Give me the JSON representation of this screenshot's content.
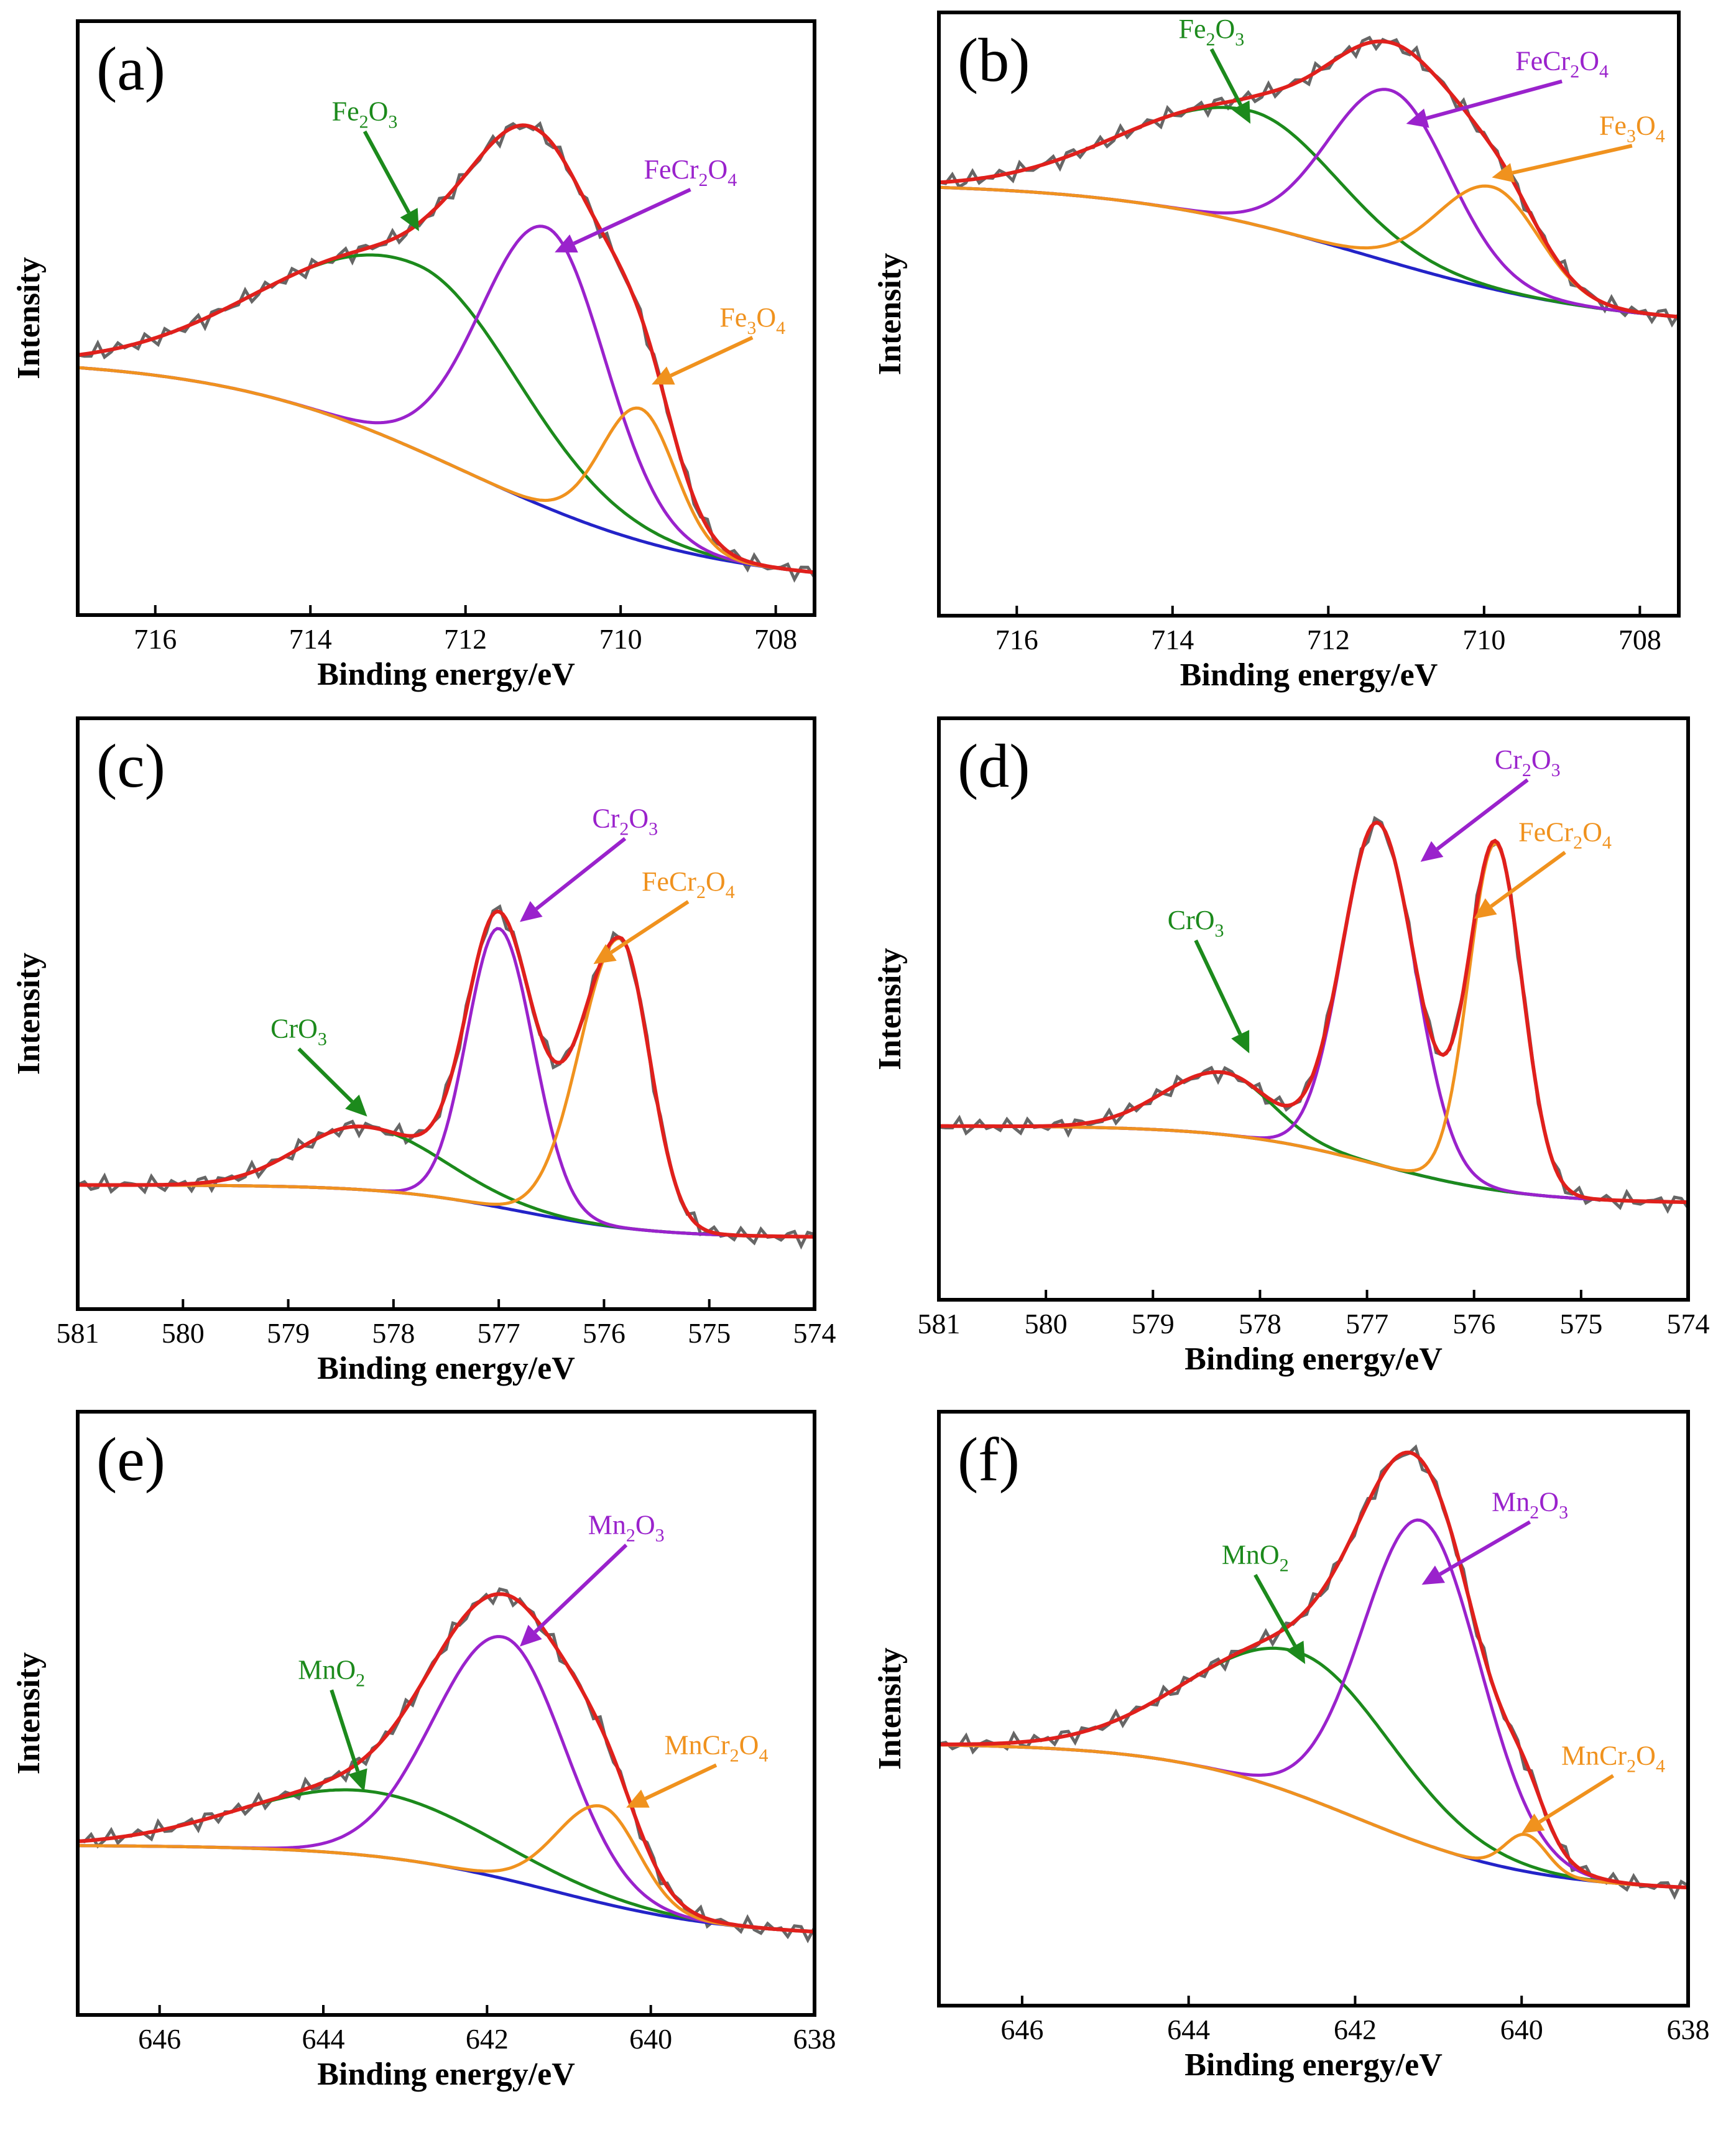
{
  "figure_type": "XPS high-resolution spectra",
  "colors": {
    "raw": "#666666",
    "envelope": "#e0201c",
    "background": "#2323c8",
    "green": "#1c8a1c",
    "purple": "#9a22cc",
    "orange": "#f0921e"
  },
  "chart_data": [
    {
      "type": "line",
      "panel": "(a)",
      "xlabel": "Binding energy/eV",
      "ylabel": "Intensity",
      "xlim": [
        717.0,
        707.5
      ],
      "ylim": [
        0,
        1
      ],
      "xticks": [
        "716",
        "714",
        "712",
        "710",
        "708"
      ],
      "background": {
        "high": 0.43,
        "low": 0.0,
        "center": 712.0,
        "width": 1.6
      },
      "components": [
        {
          "name": "Fe2O3",
          "label_main": "Fe",
          "label_parts": [
            "2",
            "O",
            "3"
          ],
          "color": "green",
          "center": 712.6,
          "height": 0.35,
          "sigma_left": 1.9,
          "sigma_right": 1.3,
          "label_anchor": [
            713.3,
            0.88
          ],
          "arrow_tip": [
            712.6,
            0.67
          ]
        },
        {
          "name": "FeCr2O4",
          "label_main": "FeCr",
          "label_parts": [
            "2",
            "O",
            "4"
          ],
          "color": "purple",
          "center": 710.95,
          "height": 0.53,
          "sigma_left": 0.85,
          "sigma_right": 0.75,
          "label_anchor": [
            709.1,
            0.77
          ],
          "arrow_tip": [
            710.85,
            0.63
          ]
        },
        {
          "name": "Fe3O4",
          "label_main": "Fe",
          "label_parts": [
            "3",
            "O",
            "4"
          ],
          "color": "orange",
          "center": 709.75,
          "height": 0.25,
          "sigma_left": 0.5,
          "sigma_right": 0.45,
          "label_anchor": [
            708.3,
            0.49
          ],
          "arrow_tip": [
            709.6,
            0.38
          ]
        }
      ]
    },
    {
      "type": "line",
      "panel": "(b)",
      "xlabel": "Binding energy/eV",
      "ylabel": "Intensity",
      "xlim": [
        717.0,
        707.5
      ],
      "ylim": [
        0,
        1
      ],
      "xticks": [
        "716",
        "714",
        "712",
        "710",
        "708"
      ],
      "background": {
        "high": 0.75,
        "low": 0.48,
        "center": 711.5,
        "width": 1.6
      },
      "components": [
        {
          "name": "Fe2O3",
          "label_main": "Fe",
          "label_parts": [
            "2",
            "O",
            "3"
          ],
          "color": "green",
          "center": 713.0,
          "height": 0.21,
          "sigma_left": 1.6,
          "sigma_right": 1.1,
          "label_anchor": [
            713.5,
            1.02
          ],
          "arrow_tip": [
            713.0,
            0.86
          ]
        },
        {
          "name": "FeCr2O4",
          "label_main": "FeCr",
          "label_parts": [
            "2",
            "O",
            "4"
          ],
          "color": "purple",
          "center": 711.2,
          "height": 0.32,
          "sigma_left": 0.8,
          "sigma_right": 0.75,
          "label_anchor": [
            709.0,
            0.96
          ],
          "arrow_tip": [
            711.0,
            0.86
          ]
        },
        {
          "name": "Fe3O4",
          "label_main": "Fe",
          "label_parts": [
            "3",
            "O",
            "4"
          ],
          "color": "orange",
          "center": 709.9,
          "height": 0.19,
          "sigma_left": 0.7,
          "sigma_right": 0.6,
          "label_anchor": [
            708.1,
            0.84
          ],
          "arrow_tip": [
            709.9,
            0.76
          ]
        }
      ]
    },
    {
      "type": "line",
      "panel": "(c)",
      "xlabel": "Binding energy/eV",
      "ylabel": "Intensity",
      "xlim": [
        581.0,
        574.0
      ],
      "ylim": [
        0,
        1
      ],
      "xticks": [
        "581",
        "580",
        "579",
        "578",
        "577",
        "576",
        "575",
        "574"
      ],
      "background": {
        "high": 0.18,
        "low": 0.08,
        "center": 576.8,
        "width": 0.65
      },
      "components": [
        {
          "name": "CrO3",
          "label_main": "CrO",
          "label_parts": [
            "3"
          ],
          "color": "green",
          "center": 578.3,
          "height": 0.12,
          "sigma_left": 0.6,
          "sigma_right": 0.75,
          "label_anchor": [
            578.9,
            0.46
          ],
          "arrow_tip": [
            578.25,
            0.31
          ]
        },
        {
          "name": "Cr2O3",
          "label_main": "Cr",
          "label_parts": [
            "2",
            "O",
            "3"
          ],
          "color": "purple",
          "center": 577.0,
          "height": 0.53,
          "sigma_left": 0.3,
          "sigma_right": 0.33,
          "label_anchor": [
            575.8,
            0.86
          ],
          "arrow_tip": [
            576.8,
            0.68
          ]
        },
        {
          "name": "FeCr2O4",
          "label_main": "FeCr",
          "label_parts": [
            "2",
            "O",
            "4"
          ],
          "color": "orange",
          "center": 575.85,
          "height": 0.55,
          "sigma_left": 0.38,
          "sigma_right": 0.28,
          "label_anchor": [
            575.2,
            0.74
          ],
          "arrow_tip": [
            576.1,
            0.6
          ]
        }
      ]
    },
    {
      "type": "line",
      "panel": "(d)",
      "xlabel": "Binding energy/eV",
      "ylabel": "Intensity",
      "xlim": [
        581.0,
        574.0
      ],
      "ylim": [
        0,
        1
      ],
      "xticks": [
        "581",
        "580",
        "579",
        "578",
        "577",
        "576",
        "575",
        "574"
      ],
      "background": {
        "high": 0.28,
        "low": 0.13,
        "center": 576.9,
        "width": 0.7
      },
      "components": [
        {
          "name": "CrO3",
          "label_main": "CrO",
          "label_parts": [
            "3"
          ],
          "color": "green",
          "center": 578.35,
          "height": 0.12,
          "sigma_left": 0.55,
          "sigma_right": 0.45,
          "label_anchor": [
            578.6,
            0.66
          ],
          "arrow_tip": [
            578.1,
            0.42
          ]
        },
        {
          "name": "Cr2O3",
          "label_main": "Cr",
          "label_parts": [
            "2",
            "O",
            "3"
          ],
          "color": "purple",
          "center": 576.9,
          "height": 0.66,
          "sigma_left": 0.33,
          "sigma_right": 0.35,
          "label_anchor": [
            575.5,
            0.97
          ],
          "arrow_tip": [
            576.5,
            0.79
          ]
        },
        {
          "name": "FeCr2O4",
          "label_main": "FeCr",
          "label_parts": [
            "2",
            "O",
            "4"
          ],
          "color": "orange",
          "center": 575.8,
          "height": 0.67,
          "sigma_left": 0.25,
          "sigma_right": 0.25,
          "label_anchor": [
            575.15,
            0.83
          ],
          "arrow_tip": [
            576.0,
            0.68
          ]
        }
      ]
    },
    {
      "type": "line",
      "panel": "(e)",
      "xlabel": "Binding energy/eV",
      "ylabel": "Intensity",
      "xlim": [
        647.0,
        638.0
      ],
      "ylim": [
        0,
        1
      ],
      "xticks": [
        "646",
        "644",
        "642",
        "640",
        "638"
      ],
      "background": {
        "high": 0.26,
        "low": 0.09,
        "center": 641.2,
        "width": 1.1
      },
      "components": [
        {
          "name": "MnO2",
          "label_main": "MnO",
          "label_parts": [
            "2"
          ],
          "color": "green",
          "center": 643.5,
          "height": 0.12,
          "sigma_left": 1.5,
          "sigma_right": 1.5,
          "label_anchor": [
            643.9,
            0.57
          ],
          "arrow_tip": [
            643.5,
            0.36
          ]
        },
        {
          "name": "Mn2O3",
          "label_main": "Mn",
          "label_parts": [
            "2",
            "O",
            "3"
          ],
          "color": "purple",
          "center": 641.8,
          "height": 0.45,
          "sigma_left": 0.85,
          "sigma_right": 0.75,
          "label_anchor": [
            640.3,
            0.84
          ],
          "arrow_tip": [
            641.6,
            0.63
          ]
        },
        {
          "name": "MnCr2O4",
          "label_main": "MnCr",
          "label_parts": [
            "2",
            "O",
            "4"
          ],
          "color": "orange",
          "center": 640.6,
          "height": 0.18,
          "sigma_left": 0.55,
          "sigma_right": 0.45,
          "label_anchor": [
            639.2,
            0.43
          ],
          "arrow_tip": [
            640.3,
            0.33
          ]
        }
      ]
    },
    {
      "type": "line",
      "panel": "(f)",
      "xlabel": "Binding energy/eV",
      "ylabel": "Intensity",
      "xlim": [
        647.0,
        638.0
      ],
      "ylim": [
        0,
        1
      ],
      "xticks": [
        "646",
        "644",
        "642",
        "640",
        "638"
      ],
      "background": {
        "high": 0.44,
        "low": 0.16,
        "center": 642.0,
        "width": 1.1
      },
      "components": [
        {
          "name": "MnO2",
          "label_main": "MnO",
          "label_parts": [
            "2"
          ],
          "color": "green",
          "center": 642.65,
          "height": 0.27,
          "sigma_left": 1.3,
          "sigma_right": 1.1,
          "label_anchor": [
            643.2,
            0.78
          ],
          "arrow_tip": [
            642.6,
            0.59
          ]
        },
        {
          "name": "Mn2O3",
          "label_main": "Mn",
          "label_parts": [
            "2",
            "O",
            "3"
          ],
          "color": "purple",
          "center": 641.2,
          "height": 0.61,
          "sigma_left": 0.7,
          "sigma_right": 0.7,
          "label_anchor": [
            639.9,
            0.88
          ],
          "arrow_tip": [
            641.2,
            0.74
          ]
        },
        {
          "name": "MnCr2O4",
          "label_main": "MnCr",
          "label_parts": [
            "2",
            "O",
            "4"
          ],
          "color": "orange",
          "center": 639.95,
          "height": 0.07,
          "sigma_left": 0.25,
          "sigma_right": 0.25,
          "label_anchor": [
            638.9,
            0.4
          ],
          "arrow_tip": [
            640.0,
            0.27
          ]
        }
      ]
    }
  ]
}
